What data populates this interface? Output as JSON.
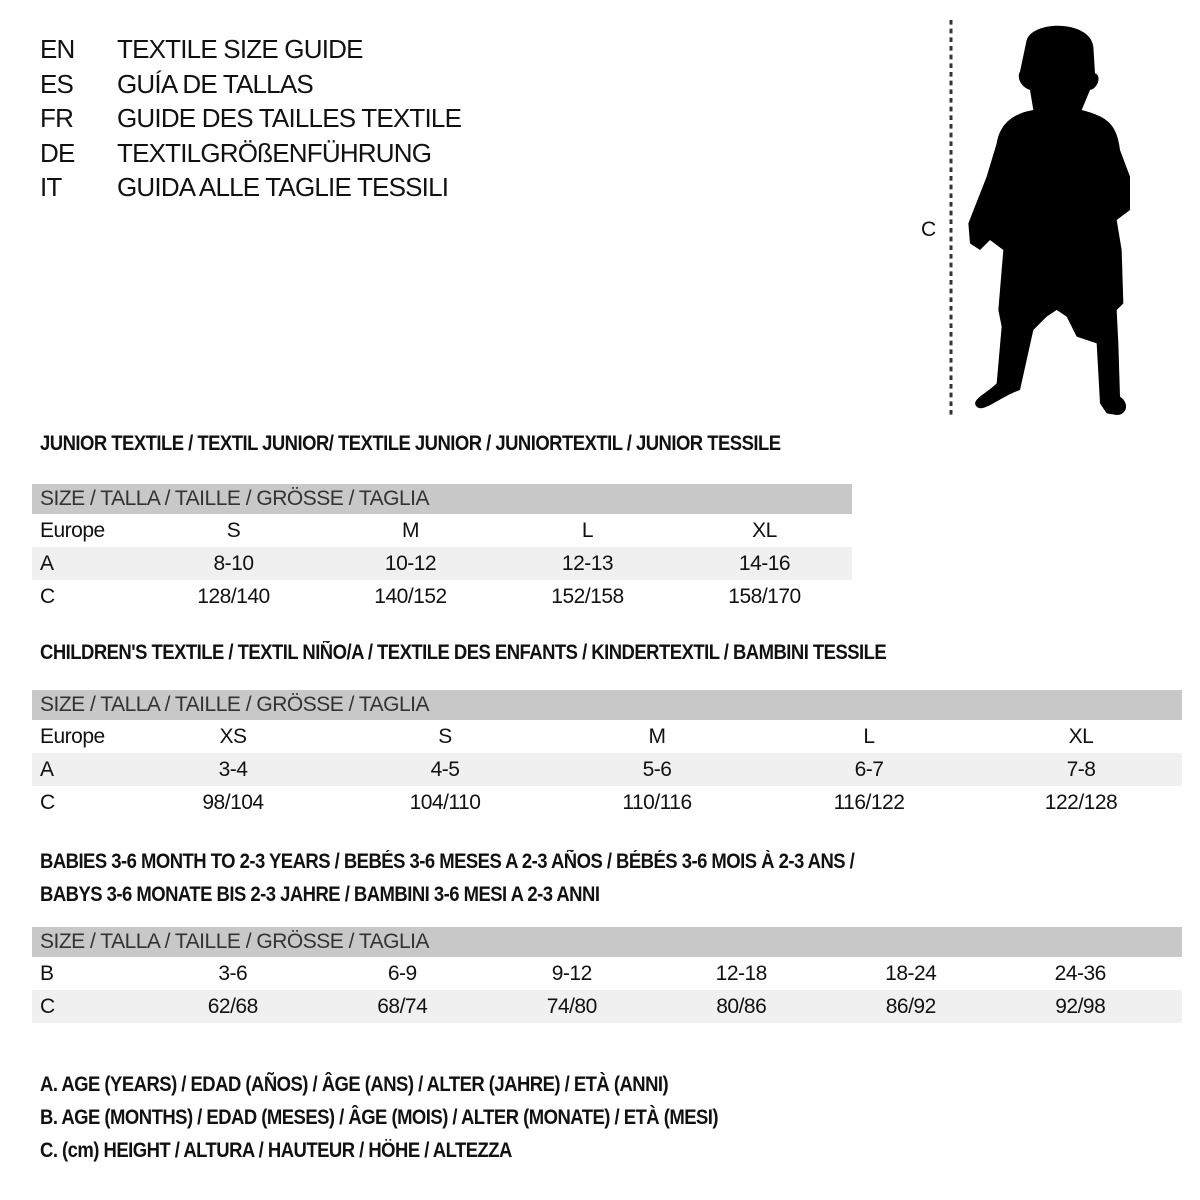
{
  "titles": [
    {
      "code": "EN",
      "text": "TEXTILE SIZE GUIDE"
    },
    {
      "code": "ES",
      "text": "GUÍA DE TALLAS"
    },
    {
      "code": "FR",
      "text": "GUIDE DES TAILLES TEXTILE"
    },
    {
      "code": "DE",
      "text": "TEXTILGRÖßENFÜHRUNG"
    },
    {
      "code": "IT",
      "text": "GUIDA ALLE TAGLIE TESSILI"
    }
  ],
  "figure": {
    "icon": "child-silhouette-icon",
    "measure_label": "C"
  },
  "junior": {
    "heading": "JUNIOR TEXTILE / TEXTIL JUNIOR/ TEXTILE JUNIOR / JUNIORTEXTIL / JUNIOR TESSILE",
    "header": "SIZE / TALLA / TAILLE / GRÖSSE / TAGLIA",
    "rows": [
      {
        "label": "Europe",
        "cells": [
          "S",
          "M",
          "L",
          "XL"
        ]
      },
      {
        "label": "A",
        "cells": [
          "8-10",
          "10-12",
          "12-13",
          "14-16"
        ]
      },
      {
        "label": "C",
        "cells": [
          "128/140",
          "140/152",
          "152/158",
          "158/170"
        ]
      }
    ]
  },
  "children": {
    "heading": "CHILDREN'S TEXTILE / TEXTIL NIÑO/A / TEXTILE DES ENFANTS / KINDERTEXTIL / BAMBINI TESSILE",
    "header": "SIZE / TALLA / TAILLE / GRÖSSE / TAGLIA",
    "rows": [
      {
        "label": "Europe",
        "cells": [
          "XS",
          "S",
          "M",
          "L",
          "XL"
        ]
      },
      {
        "label": "A",
        "cells": [
          "3-4",
          "4-5",
          "5-6",
          "6-7",
          "7-8"
        ]
      },
      {
        "label": "C",
        "cells": [
          "98/104",
          "104/110",
          "110/116",
          "116/122",
          "122/128"
        ]
      }
    ]
  },
  "babies": {
    "heading_1": "BABIES 3-6 MONTH TO 2-3 YEARS / BEBÉS 3-6 MESES A 2-3 AÑOS / BÉBÉS 3-6 MOIS À 2-3 ANS /",
    "heading_2": "BABYS 3-6 MONATE BIS 2-3 JAHRE / BAMBINI 3-6 MESI A 2-3 ANNI",
    "header": "SIZE / TALLA / TAILLE / GRÖSSE / TAGLIA",
    "rows": [
      {
        "label": "B",
        "cells": [
          "3-6",
          "6-9",
          "9-12",
          "12-18",
          "18-24",
          "24-36"
        ]
      },
      {
        "label": "C",
        "cells": [
          "62/68",
          "68/74",
          "74/80",
          "80/86",
          "86/92",
          "92/98"
        ]
      }
    ]
  },
  "legend": [
    "A. AGE (YEARS) / EDAD (AÑOS) / ÂGE (ANS) / ALTER (JAHRE) / ETÀ (ANNI)",
    "B. AGE (MONTHS) / EDAD (MESES) / ÂGE (MOIS) / ALTER (MONATE) / ETÀ (MESI)",
    "C. (cm) HEIGHT / ALTURA / HAUTEUR / HÖHE / ALTEZZA"
  ],
  "colors": {
    "header_bg": "#c8c8c8",
    "alt_row_bg": "#f0f0f0",
    "text": "#111111"
  }
}
